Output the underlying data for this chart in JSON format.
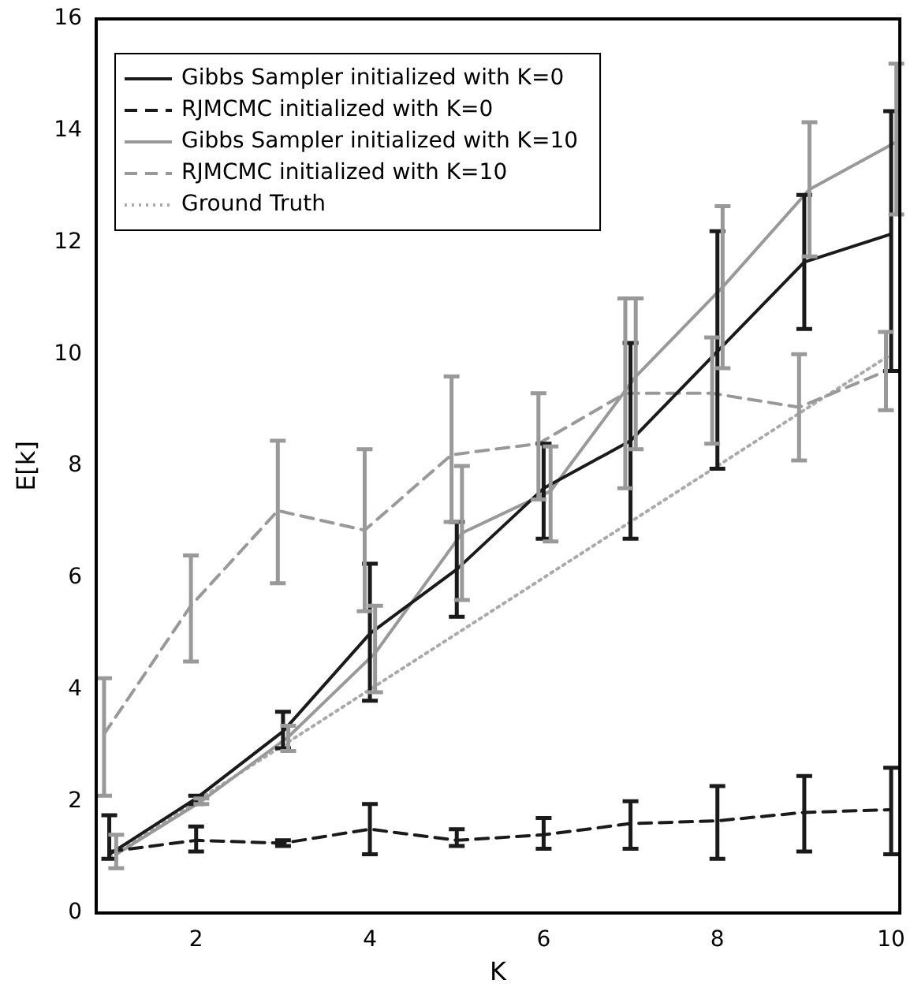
{
  "chart_data": {
    "type": "line",
    "xlabel": "K",
    "ylabel": "E[k]",
    "xlim": [
      0.85,
      10.1
    ],
    "ylim": [
      0,
      16
    ],
    "xticks": [
      2,
      4,
      6,
      8,
      10
    ],
    "yticks": [
      0,
      2,
      4,
      6,
      8,
      10,
      12,
      14,
      16
    ],
    "x": [
      1,
      2,
      3,
      4,
      5,
      6,
      7,
      8,
      9,
      10
    ],
    "grid": false,
    "legend": "top left",
    "marker": "none",
    "series": [
      {
        "name": "Gibbs Sampler initialized with K=0",
        "color": "#1a1a1a",
        "line_style": "solid",
        "values": [
          1.05,
          2.05,
          3.25,
          5.0,
          6.15,
          7.6,
          8.45,
          10.05,
          11.65,
          12.15
        ],
        "errors": [
          [
            0.97,
            1.75
          ],
          [
            1.95,
            2.1
          ],
          [
            2.95,
            3.6
          ],
          [
            3.8,
            6.25
          ],
          [
            5.3,
            7.0
          ],
          [
            6.7,
            8.4
          ],
          [
            6.7,
            10.2
          ],
          [
            7.95,
            12.2
          ],
          [
            10.45,
            12.85
          ],
          [
            9.7,
            14.35
          ]
        ]
      },
      {
        "name": "RJMCMC initialized with K=0",
        "color": "#1a1a1a",
        "line_style": "dashed",
        "values": [
          1.1,
          1.3,
          1.25,
          1.5,
          1.3,
          1.4,
          1.6,
          1.65,
          1.8,
          1.85
        ],
        "errors": [
          null,
          [
            1.1,
            1.55
          ],
          [
            1.2,
            1.3
          ],
          [
            1.05,
            1.95
          ],
          [
            1.2,
            1.5
          ],
          [
            1.15,
            1.7
          ],
          [
            1.15,
            2.0
          ],
          [
            0.97,
            2.27
          ],
          [
            1.1,
            2.45
          ],
          [
            1.05,
            2.6
          ]
        ]
      },
      {
        "name": "Gibbs Sampler initialized with K=10",
        "color": "#999999",
        "line_style": "solid",
        "x": [
          1.08,
          2.06,
          3.06,
          4.06,
          5.06,
          6.08,
          7.06,
          8.06,
          9.06,
          10.06
        ],
        "values": [
          1.05,
          2.0,
          3.15,
          4.65,
          6.8,
          7.55,
          9.6,
          11.2,
          12.95,
          13.8
        ],
        "errors": [
          [
            0.8,
            1.4
          ],
          [
            1.95,
            2.05
          ],
          [
            2.9,
            3.35
          ],
          [
            3.95,
            5.5
          ],
          [
            5.6,
            8.0
          ],
          [
            6.65,
            8.35
          ],
          [
            8.3,
            11.0
          ],
          [
            9.75,
            12.65
          ],
          [
            11.75,
            14.15
          ],
          [
            12.5,
            15.2
          ]
        ]
      },
      {
        "name": "RJMCMC initialized with K=10",
        "color": "#999999",
        "line_style": "dashed",
        "x": [
          0.94,
          1.94,
          2.94,
          3.94,
          4.94,
          5.94,
          6.94,
          7.94,
          8.94,
          9.94
        ],
        "values": [
          3.2,
          5.5,
          7.2,
          6.85,
          8.2,
          8.4,
          9.3,
          9.3,
          9.05,
          9.7
        ],
        "errors": [
          [
            2.1,
            4.2
          ],
          [
            4.5,
            6.4
          ],
          [
            5.9,
            8.45
          ],
          [
            5.4,
            8.3
          ],
          [
            7.0,
            9.6
          ],
          [
            7.4,
            9.3
          ],
          [
            7.6,
            11.0
          ],
          [
            8.4,
            10.3
          ],
          [
            8.1,
            10.0
          ],
          [
            9.0,
            10.4
          ]
        ]
      },
      {
        "name": "Ground Truth",
        "color": "#aaaaaa",
        "line_style": "dotted",
        "values": [
          1,
          2,
          3,
          4,
          5,
          6,
          7,
          8,
          9,
          10
        ]
      }
    ]
  }
}
